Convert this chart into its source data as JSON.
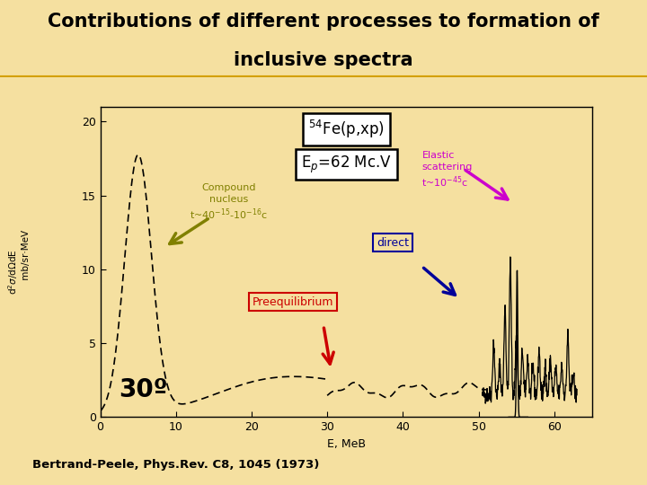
{
  "title_line1": "Contributions of different processes to formation of",
  "title_line2": "inclusive spectra",
  "title_bg": "#f0c040",
  "slide_bg": "#f5e0a0",
  "plot_bg": "#f5e0a0",
  "citation": "Bertrand-Peele, Phys.Rev. C8, 1045 (1973)",
  "xlabel": "E, MeB",
  "ylabel_parts": [
    "d",
    "2",
    "σ",
    "/dΩdE, mb/sr MeV"
  ],
  "xlim": [
    0,
    65
  ],
  "ylim": [
    0,
    21
  ],
  "xticks": [
    0,
    10,
    20,
    30,
    40,
    50,
    60
  ],
  "yticks": [
    0,
    5,
    10,
    15,
    20
  ],
  "reaction_line1": "$^{54}$Fe(p,xp)",
  "reaction_line2": "E$_{p}$=62 Mc.V",
  "angle_label": "30º",
  "compound_label": "Compound\nnucleus\nt~40$^{-15}$-10$^{-16}$c",
  "compound_color": "#808000",
  "elastic_label": "Elastic\nscattering\nt~10$^{-45}$c",
  "elastic_color": "#cc00cc",
  "direct_label": "direct",
  "direct_color": "#000099",
  "preequil_label": "Preequilibrium",
  "preequil_color": "#cc0000"
}
